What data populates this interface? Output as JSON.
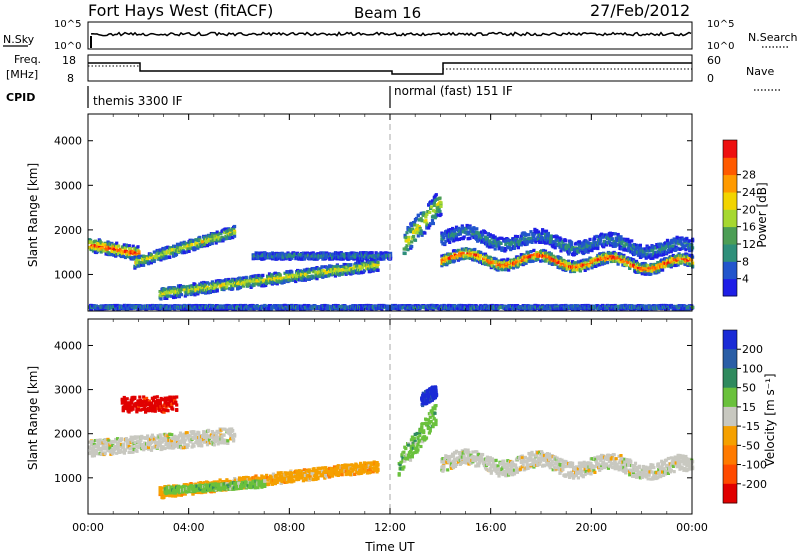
{
  "header": {
    "station": "Fort Hays West (fitACF)",
    "beam": "Beam 16",
    "date": "27/Feb/2012"
  },
  "status_panel": {
    "nsky_label": "N.Sky",
    "nsearch_label": "N.Search",
    "noise_ticks": [
      "10^5",
      "10^0"
    ],
    "freq_label": "Freq.",
    "freq_unit": "[MHz]",
    "freq_ticks": [
      "18",
      "8"
    ],
    "nave_label": "Nave",
    "nave_ticks": [
      "60",
      "0"
    ],
    "cpid_label": "CPID",
    "cpid_modes": [
      {
        "name": "themis 3300 IF",
        "start_hour": 0.0
      },
      {
        "name": "normal (fast) 151 IF",
        "start_hour": 12.0
      }
    ]
  },
  "x_axis": {
    "label": "Time UT",
    "range": [
      0,
      24
    ],
    "ticks": [
      {
        "hour": 0,
        "label": "00:00"
      },
      {
        "hour": 4,
        "label": "04:00"
      },
      {
        "hour": 8,
        "label": "08:00"
      },
      {
        "hour": 12,
        "label": "12:00"
      },
      {
        "hour": 16,
        "label": "16:00"
      },
      {
        "hour": 20,
        "label": "20:00"
      },
      {
        "hour": 24,
        "label": "00:00"
      }
    ]
  },
  "chart_data": [
    {
      "type": "heatmap",
      "panel": "power",
      "ylabel": "Slant Range [km]",
      "ylim": [
        180,
        4600
      ],
      "xlim": [
        0,
        24
      ],
      "y_ticks": [
        1000,
        2000,
        3000,
        4000
      ],
      "colorbar": {
        "label": "Power [dB]",
        "ticks": [
          "4",
          "8",
          "12",
          "16",
          "20",
          "24",
          "28"
        ],
        "colors": [
          "#1e1ee6",
          "#2255cc",
          "#2e8f7a",
          "#4c9e55",
          "#a6d830",
          "#f2d400",
          "#ff9a00",
          "#ff5a00",
          "#ee1010"
        ]
      },
      "features": [
        {
          "t0": 0.0,
          "t1": 2.0,
          "r_start": 1700,
          "r_end": 1500,
          "thickness": 300,
          "level": "high"
        },
        {
          "t0": 1.8,
          "t1": 5.8,
          "r_start": 1300,
          "r_end": 2000,
          "thickness": 250,
          "level": "mid"
        },
        {
          "t0": 2.8,
          "t1": 11.5,
          "r_start": 600,
          "r_end": 1250,
          "thickness": 250,
          "level": "mid"
        },
        {
          "t0": 6.5,
          "t1": 12.0,
          "r_start": 1450,
          "r_end": 1450,
          "thickness": 150,
          "level": "low"
        },
        {
          "t0": 12.5,
          "t1": 14.0,
          "r_start": 1700,
          "r_end": 2700,
          "thickness": 600,
          "level": "mid"
        },
        {
          "t0": 14.0,
          "t1": 24.0,
          "r_start": 1400,
          "r_end": 1250,
          "thickness": 250,
          "level": "high"
        },
        {
          "t0": 14.0,
          "t1": 24.0,
          "r_start": 1900,
          "r_end": 1600,
          "thickness": 300,
          "level": "low"
        },
        {
          "t0": 0.0,
          "t1": 24.0,
          "r_start": 300,
          "r_end": 300,
          "thickness": 80,
          "level": "low"
        }
      ]
    },
    {
      "type": "heatmap",
      "panel": "velocity",
      "ylabel": "Slant Range [km]",
      "ylim": [
        180,
        4600
      ],
      "xlim": [
        0,
        24
      ],
      "y_ticks": [
        1000,
        2000,
        3000,
        4000
      ],
      "colorbar": {
        "label": "Velocity [m s⁻¹]",
        "ticks": [
          "200",
          "100",
          "50",
          "15",
          "-15",
          "-50",
          "-100",
          "-200"
        ],
        "colors": [
          "#1a2bd6",
          "#2a5ea6",
          "#2f8a5e",
          "#6ac13c",
          "#c8c8c0",
          "#f5a000",
          "#ff7a00",
          "#ff4a00",
          "#e00000"
        ]
      },
      "features": [
        {
          "t0": 0.0,
          "t1": 5.8,
          "r_start": 1700,
          "r_end": 2000,
          "thickness": 350,
          "class": "near-zero"
        },
        {
          "t0": 1.3,
          "t1": 3.5,
          "r_start": 2700,
          "r_end": 2700,
          "thickness": 350,
          "class": "away-strong"
        },
        {
          "t0": 2.8,
          "t1": 11.5,
          "r_start": 700,
          "r_end": 1300,
          "thickness": 250,
          "class": "away-moderate"
        },
        {
          "t0": 3.0,
          "t1": 7.0,
          "r_start": 750,
          "r_end": 900,
          "thickness": 150,
          "class": "toward-weak"
        },
        {
          "t0": 12.3,
          "t1": 13.8,
          "r_start": 1300,
          "r_end": 2500,
          "thickness": 500,
          "class": "toward-weak"
        },
        {
          "t0": 13.2,
          "t1": 13.8,
          "r_start": 2800,
          "r_end": 3000,
          "thickness": 300,
          "class": "toward-strong"
        },
        {
          "t0": 14.0,
          "t1": 24.0,
          "r_start": 1400,
          "r_end": 1250,
          "thickness": 350,
          "class": "near-zero"
        }
      ]
    }
  ]
}
